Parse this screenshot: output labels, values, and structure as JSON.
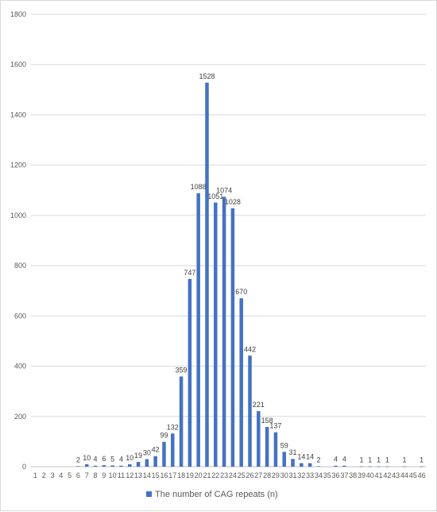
{
  "chart_data": {
    "type": "bar",
    "categories": [
      "1",
      "2",
      "3",
      "4",
      "5",
      "6",
      "7",
      "8",
      "9",
      "10",
      "11",
      "12",
      "13",
      "14",
      "15",
      "16",
      "17",
      "18",
      "19",
      "20",
      "21",
      "22",
      "23",
      "24",
      "25",
      "26",
      "27",
      "28",
      "29",
      "30",
      "31",
      "32",
      "33",
      "34",
      "35",
      "36",
      "37",
      "38",
      "39",
      "40",
      "41",
      "42",
      "43",
      "44",
      "45",
      "46"
    ],
    "series": [
      {
        "name": "The number of CAG repeats (n)",
        "color": "#4472c4",
        "values": [
          0,
          0,
          0,
          0,
          0,
          2,
          10,
          4,
          6,
          5,
          4,
          10,
          19,
          30,
          42,
          99,
          132,
          359,
          747,
          1088,
          1528,
          1051,
          1074,
          1028,
          670,
          442,
          221,
          158,
          137,
          59,
          31,
          14,
          14,
          2,
          0,
          4,
          4,
          0,
          1,
          1,
          1,
          1,
          0,
          1,
          0,
          1
        ],
        "data_labels": [
          "",
          "",
          "",
          "",
          "",
          "2",
          "10",
          "4",
          "6",
          "5",
          "4",
          "10",
          "19",
          "30",
          "42",
          "99",
          "132",
          "359",
          "747",
          "1088",
          "1528",
          "1051",
          "1074",
          "1028",
          "670",
          "442",
          "221",
          "158",
          "137",
          "59",
          "31",
          "14",
          "14",
          "2",
          "",
          "4",
          "4",
          "",
          "1",
          "1",
          "1",
          "1",
          "",
          "1",
          "",
          "1"
        ]
      }
    ],
    "y_ticks": [
      "0",
      "200",
      "400",
      "600",
      "800",
      "1000",
      "1200",
      "1400",
      "1600",
      "1800"
    ],
    "ylim": [
      0,
      1800
    ],
    "grid": true,
    "legend_position": "bottom"
  }
}
